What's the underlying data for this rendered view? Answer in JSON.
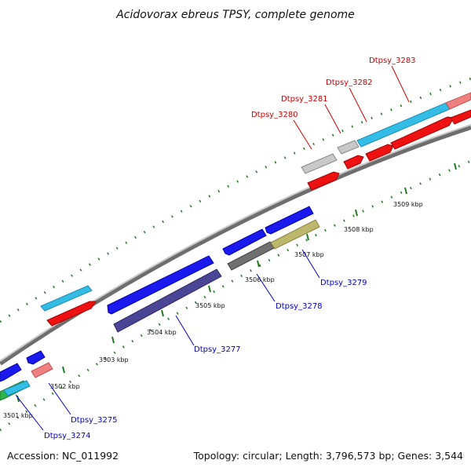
{
  "title": "Acidovorax ebreus TPSY, complete genome",
  "footer": {
    "accession": "Accession: NC_011992",
    "summary": "Topology: circular; Length: 3,796,573 bp; Genes: 3,544"
  },
  "colors": {
    "backbone": "#8c8c8c",
    "tick": "#1f7a1f",
    "label_forward": "#cc0000",
    "label_reverse": "#0000cc"
  },
  "position_labels": [
    "3501 kbp",
    "3502 kbp",
    "3503 kbp",
    "3504 kbp",
    "3505 kbp",
    "3506 kbp",
    "3507 kbp",
    "3508 kbp",
    "3509 kbp"
  ],
  "gene_labels": [
    {
      "id": "Dtpsy_3280",
      "strand": "forward"
    },
    {
      "id": "Dtpsy_3281",
      "strand": "forward"
    },
    {
      "id": "Dtpsy_3282",
      "strand": "forward"
    },
    {
      "id": "Dtpsy_3283",
      "strand": "forward"
    },
    {
      "id": "Dtpsy_3274",
      "strand": "reverse"
    },
    {
      "id": "Dtpsy_3275",
      "strand": "reverse"
    },
    {
      "id": "Dtpsy_3277",
      "strand": "reverse"
    },
    {
      "id": "Dtpsy_3278",
      "strand": "reverse"
    },
    {
      "id": "Dtpsy_3279",
      "strand": "reverse"
    }
  ]
}
